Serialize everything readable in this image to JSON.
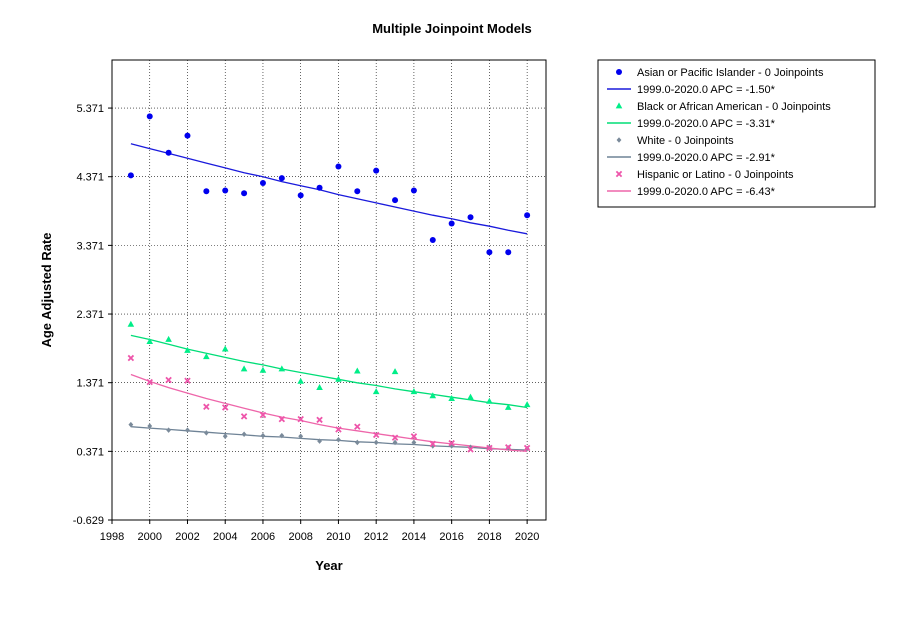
{
  "chart_data": {
    "type": "scatter",
    "title": "Multiple Joinpoint Models",
    "xlabel": "Year",
    "ylabel": "Age Adjusted Rate",
    "xlim": [
      1998,
      2021
    ],
    "ylim": [
      -0.629,
      6.071
    ],
    "x_ticks": [
      1998,
      2000,
      2002,
      2004,
      2006,
      2008,
      2010,
      2012,
      2014,
      2016,
      2018,
      2020
    ],
    "y_ticks": [
      -0.629,
      0.371,
      1.371,
      2.371,
      3.371,
      4.371,
      5.371
    ],
    "grid": true,
    "legend_position": "right",
    "x": [
      1999,
      2000,
      2001,
      2002,
      2003,
      2004,
      2005,
      2006,
      2007,
      2008,
      2009,
      2010,
      2011,
      2012,
      2013,
      2014,
      2015,
      2016,
      2017,
      2018,
      2019,
      2020
    ],
    "series": [
      {
        "name": "Asian or Pacific Islander - 0 Joinpoints",
        "fit_label": "1999.0-2020.0 APC  =  -1.50*",
        "color": "#0000ee",
        "fit_color": "#1a1adc",
        "marker": "circle",
        "values": [
          4.39,
          5.25,
          4.72,
          4.97,
          4.16,
          4.17,
          4.13,
          4.28,
          4.35,
          4.1,
          4.21,
          4.52,
          4.16,
          4.46,
          4.03,
          4.17,
          3.45,
          3.69,
          3.78,
          3.27,
          3.27,
          3.81
        ],
        "fit": [
          4.85,
          4.78,
          4.71,
          4.64,
          4.57,
          4.5,
          4.43,
          4.37,
          4.3,
          4.24,
          4.18,
          4.11,
          4.05,
          3.99,
          3.93,
          3.87,
          3.81,
          3.76,
          3.7,
          3.65,
          3.59,
          3.54
        ]
      },
      {
        "name": "Black or African American - 0 Joinpoints",
        "fit_label": "1999.0-2020.0 APC  =  -3.31*",
        "color": "#00ee88",
        "fit_color": "#00dd77",
        "marker": "triangle",
        "values": [
          2.22,
          1.97,
          2.0,
          1.84,
          1.75,
          1.86,
          1.57,
          1.55,
          1.57,
          1.39,
          1.3,
          1.42,
          1.54,
          1.24,
          1.53,
          1.24,
          1.18,
          1.14,
          1.16,
          1.1,
          1.01,
          1.05
        ],
        "fit": [
          2.06,
          2.0,
          1.93,
          1.86,
          1.8,
          1.74,
          1.68,
          1.63,
          1.57,
          1.52,
          1.47,
          1.42,
          1.37,
          1.33,
          1.28,
          1.24,
          1.2,
          1.16,
          1.12,
          1.08,
          1.05,
          1.01
        ]
      },
      {
        "name": "White - 0 Joinpoints",
        "fit_label": "1999.0-2020.0 APC  =  -2.91*",
        "color": "#7a8a9a",
        "fit_color": "#6f8396",
        "marker": "diamond",
        "values": [
          0.76,
          0.74,
          0.68,
          0.68,
          0.64,
          0.59,
          0.62,
          0.6,
          0.6,
          0.59,
          0.52,
          0.54,
          0.5,
          0.5,
          0.5,
          0.5,
          0.45,
          0.45,
          0.43,
          0.43,
          0.42,
          0.41
        ],
        "fit": [
          0.73,
          0.71,
          0.69,
          0.67,
          0.65,
          0.63,
          0.61,
          0.59,
          0.58,
          0.56,
          0.54,
          0.53,
          0.51,
          0.5,
          0.48,
          0.47,
          0.45,
          0.44,
          0.43,
          0.41,
          0.4,
          0.39
        ]
      },
      {
        "name": "Hispanic or Latino - 0 Joinpoints",
        "fit_label": "1999.0-2020.0 APC  =  -6.43*",
        "color": "#ee55aa",
        "fit_color": "#ee66aa",
        "marker": "x",
        "values": [
          1.73,
          1.38,
          1.41,
          1.4,
          1.02,
          1.01,
          0.88,
          0.9,
          0.84,
          0.84,
          0.83,
          0.69,
          0.73,
          0.61,
          0.57,
          0.59,
          0.48,
          0.49,
          0.4,
          0.42,
          0.43,
          0.42
        ],
        "fit": [
          1.49,
          1.39,
          1.3,
          1.22,
          1.14,
          1.07,
          1.0,
          0.93,
          0.87,
          0.82,
          0.76,
          0.71,
          0.67,
          0.63,
          0.59,
          0.55,
          0.51,
          0.48,
          0.45,
          0.42,
          0.39,
          0.37
        ]
      }
    ]
  }
}
